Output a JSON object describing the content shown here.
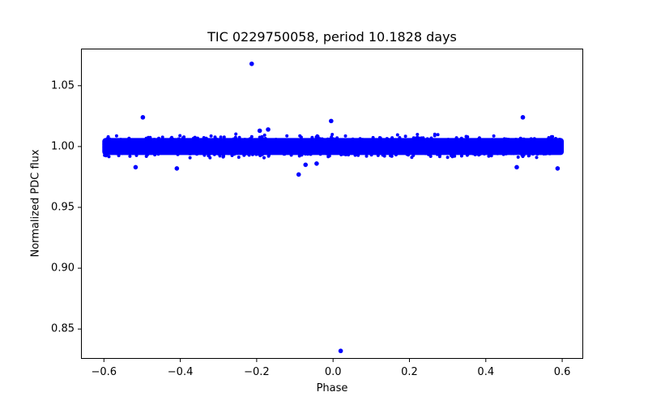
{
  "chart_data": {
    "type": "scatter",
    "title": "TIC 0229750058, period 10.1828 days",
    "xlabel": "Phase",
    "ylabel": "Normalized PDC flux",
    "xlim": [
      -0.66,
      0.655
    ],
    "ylim": [
      0.8255,
      1.0805
    ],
    "xticks": [
      -0.6,
      -0.4,
      -0.2,
      0.0,
      0.2,
      0.4,
      0.6
    ],
    "xtick_labels": [
      "−0.6",
      "−0.4",
      "−0.2",
      "0.0",
      "0.2",
      "0.4",
      "0.6"
    ],
    "yticks": [
      0.85,
      0.9,
      0.95,
      1.0,
      1.05
    ],
    "ytick_labels": [
      "0.85",
      "0.90",
      "0.95",
      "1.00",
      "1.05"
    ],
    "grid": false,
    "legend": null,
    "marker_color": "#0000ff",
    "band": {
      "x_range": [
        -0.6,
        0.6
      ],
      "median_flux": 1.0,
      "typical_range": [
        0.993,
        1.007
      ],
      "scatter_range": [
        0.985,
        1.013
      ],
      "note": "dense band of points spanning full phase range"
    },
    "outliers": [
      {
        "x": -0.213,
        "y": 1.068
      },
      {
        "x": -0.498,
        "y": 1.024
      },
      {
        "x": -0.005,
        "y": 1.021
      },
      {
        "x": 0.497,
        "y": 1.024
      },
      {
        "x": 0.02,
        "y": 0.832
      },
      {
        "x": -0.09,
        "y": 0.977
      },
      {
        "x": -0.517,
        "y": 0.983
      },
      {
        "x": 0.481,
        "y": 0.983
      },
      {
        "x": 0.588,
        "y": 0.982
      },
      {
        "x": -0.409,
        "y": 0.982
      },
      {
        "x": -0.072,
        "y": 0.985
      },
      {
        "x": -0.043,
        "y": 0.986
      },
      {
        "x": -0.192,
        "y": 1.013
      },
      {
        "x": -0.17,
        "y": 1.014
      }
    ]
  }
}
